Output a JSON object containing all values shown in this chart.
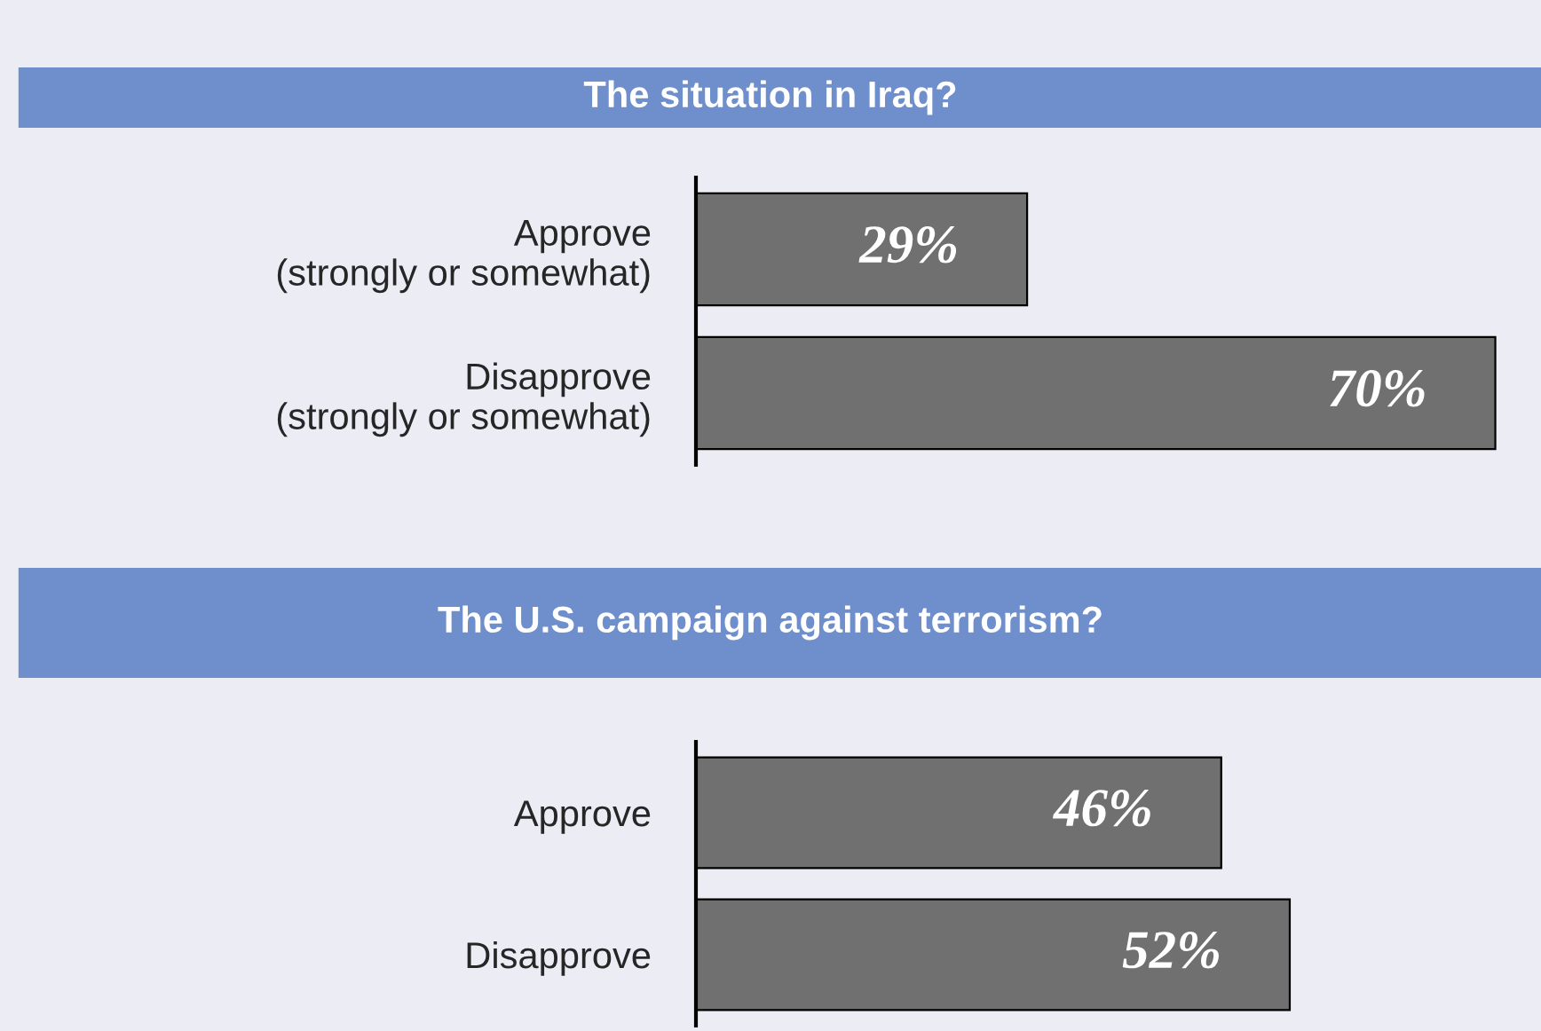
{
  "chart_data": [
    {
      "type": "bar",
      "orientation": "horizontal",
      "title": "The situation in Iraq?",
      "categories": [
        "Approve\n(strongly or somewhat)",
        "Disapprove\n(strongly or somewhat)"
      ],
      "values": [
        29,
        70
      ],
      "value_labels": [
        "29%",
        "70%"
      ],
      "color": "#707070",
      "xlim": [
        0,
        74
      ],
      "tick_labels": "y",
      "grid": false,
      "legend": false
    },
    {
      "type": "bar",
      "orientation": "horizontal",
      "title": "The U.S. campaign against terrorism?",
      "categories": [
        "Approve",
        "Disapprove"
      ],
      "values": [
        46,
        52
      ],
      "value_labels": [
        "46%",
        "52%"
      ],
      "color": "#707070",
      "xlim": [
        0,
        74
      ],
      "tick_labels": "y",
      "grid": false,
      "legend": false
    }
  ]
}
